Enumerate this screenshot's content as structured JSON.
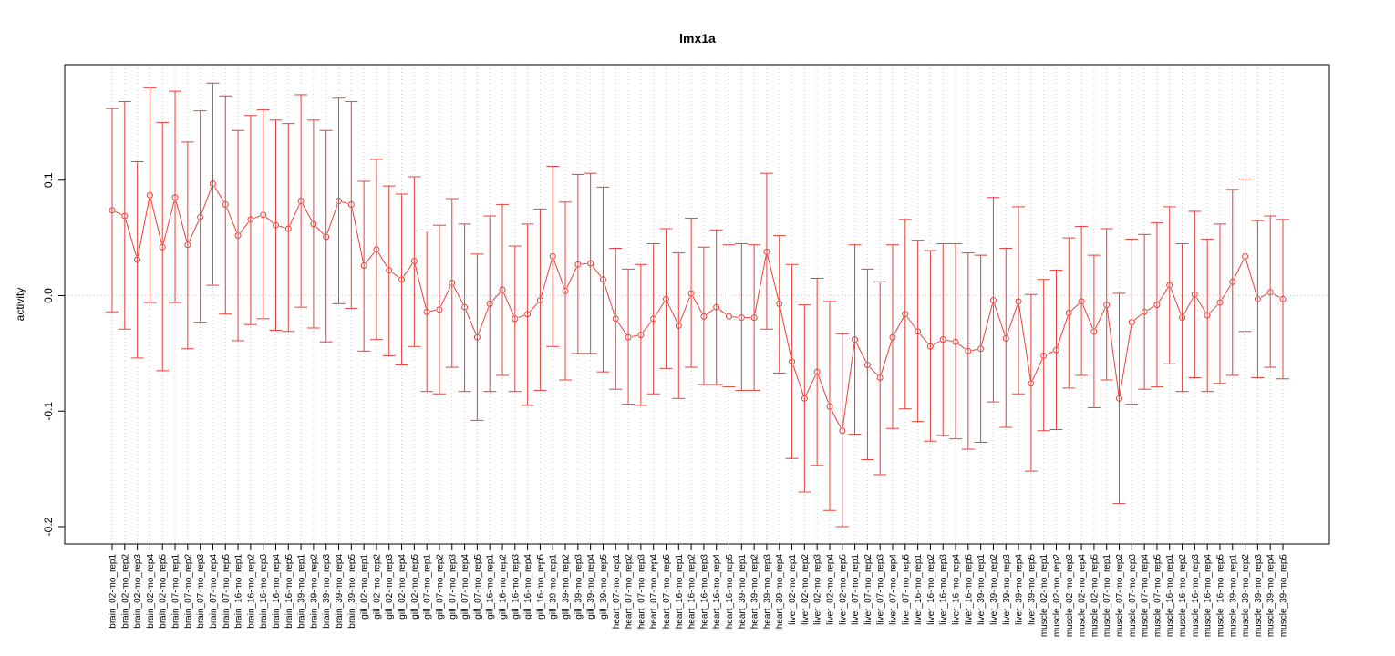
{
  "chart_data": {
    "type": "line",
    "title": "lmx1a",
    "xlabel": "",
    "ylabel": "activity",
    "ylim": [
      -0.215,
      0.2
    ],
    "yticks": [
      -0.2,
      -0.1,
      0.0,
      0.1
    ],
    "ytick_labels": [
      "-0.2",
      "-0.1",
      "0.0",
      "0.1"
    ],
    "grid": true,
    "color": "#e8413a",
    "grid_color": "#cccccc",
    "categories": [
      "brain_02-mo_rep1",
      "brain_02-mo_rep2",
      "brain_02-mo_rep3",
      "brain_02-mo_rep4",
      "brain_02-mo_rep5",
      "brain_07-mo_rep1",
      "brain_07-mo_rep2",
      "brain_07-mo_rep3",
      "brain_07-mo_rep4",
      "brain_07-mo_rep5",
      "brain_16-mo_rep1",
      "brain_16-mo_rep2",
      "brain_16-mo_rep3",
      "brain_16-mo_rep4",
      "brain_16-mo_rep5",
      "brain_39-mo_rep1",
      "brain_39-mo_rep2",
      "brain_39-mo_rep3",
      "brain_39-mo_rep4",
      "brain_39-mo_rep5",
      "gill_02-mo_rep1",
      "gill_02-mo_rep2",
      "gill_02-mo_rep3",
      "gill_02-mo_rep4",
      "gill_02-mo_rep5",
      "gill_07-mo_rep1",
      "gill_07-mo_rep2",
      "gill_07-mo_rep3",
      "gill_07-mo_rep4",
      "gill_07-mo_rep5",
      "gill_16-mo_rep1",
      "gill_16-mo_rep2",
      "gill_16-mo_rep3",
      "gill_16-mo_rep4",
      "gill_16-mo_rep5",
      "gill_39-mo_rep1",
      "gill_39-mo_rep2",
      "gill_39-mo_rep3",
      "gill_39-mo_rep4",
      "gill_39-mo_rep5",
      "heart_07-mo_rep1",
      "heart_07-mo_rep2",
      "heart_07-mo_rep3",
      "heart_07-mo_rep4",
      "heart_07-mo_rep5",
      "heart_16-mo_rep1",
      "heart_16-mo_rep2",
      "heart_16-mo_rep3",
      "heart_16-mo_rep4",
      "heart_16-mo_rep5",
      "heart_39-mo_rep1",
      "heart_39-mo_rep2",
      "heart_39-mo_rep3",
      "heart_39-mo_rep4",
      "liver_02-mo_rep1",
      "liver_02-mo_rep2",
      "liver_02-mo_rep3",
      "liver_02-mo_rep4",
      "liver_02-mo_rep5",
      "liver_07-mo_rep1",
      "liver_07-mo_rep2",
      "liver_07-mo_rep3",
      "liver_07-mo_rep4",
      "liver_07-mo_rep5",
      "liver_16-mo_rep1",
      "liver_16-mo_rep2",
      "liver_16-mo_rep3",
      "liver_16-mo_rep4",
      "liver_16-mo_rep5",
      "liver_39-mo_rep1",
      "liver_39-mo_rep2",
      "liver_39-mo_rep3",
      "liver_39-mo_rep4",
      "liver_39-mo_rep5",
      "muscle_02-mo_rep1",
      "muscle_02-mo_rep2",
      "muscle_02-mo_rep3",
      "muscle_02-mo_rep4",
      "muscle_02-mo_rep5",
      "muscle_07-mo_rep1",
      "muscle_07-mo_rep2",
      "muscle_07-mo_rep3",
      "muscle_07-mo_rep4",
      "muscle_07-mo_rep5",
      "muscle_16-mo_rep1",
      "muscle_16-mo_rep2",
      "muscle_16-mo_rep3",
      "muscle_16-mo_rep4",
      "muscle_16-mo_rep5",
      "muscle_39-mo_rep1",
      "muscle_39-mo_rep2",
      "muscle_39-mo_rep3",
      "muscle_39-mo_rep4",
      "muscle_39-mo_rep5"
    ],
    "values": [
      0.074,
      0.069,
      0.031,
      0.087,
      0.042,
      0.085,
      0.044,
      0.068,
      0.097,
      0.079,
      0.052,
      0.066,
      0.07,
      0.061,
      0.058,
      0.082,
      0.062,
      0.051,
      0.082,
      0.079,
      0.026,
      0.04,
      0.022,
      0.014,
      0.03,
      -0.014,
      -0.012,
      0.011,
      -0.01,
      -0.036,
      -0.007,
      0.005,
      -0.02,
      -0.016,
      -0.004,
      0.034,
      0.004,
      0.027,
      0.028,
      0.014,
      -0.02,
      -0.036,
      -0.034,
      -0.02,
      -0.003,
      -0.026,
      0.002,
      -0.018,
      -0.01,
      -0.018,
      -0.019,
      -0.019,
      0.038,
      -0.007,
      -0.057,
      -0.089,
      -0.066,
      -0.096,
      -0.117,
      -0.038,
      -0.06,
      -0.071,
      -0.036,
      -0.016,
      -0.031,
      -0.044,
      -0.038,
      -0.04,
      -0.048,
      -0.046,
      -0.004,
      -0.037,
      -0.005,
      -0.076,
      -0.052,
      -0.047,
      -0.015,
      -0.005,
      -0.031,
      -0.008,
      -0.089,
      -0.023,
      -0.014,
      -0.008,
      0.009,
      -0.019,
      0.001,
      -0.017,
      -0.006,
      0.012,
      0.034,
      -0.003,
      0.003,
      -0.003
    ],
    "upper": [
      0.162,
      0.168,
      0.116,
      0.18,
      0.15,
      0.177,
      0.133,
      0.16,
      0.184,
      0.173,
      0.143,
      0.156,
      0.161,
      0.152,
      0.149,
      0.174,
      0.152,
      0.143,
      0.171,
      0.168,
      0.099,
      0.118,
      0.095,
      0.088,
      0.103,
      0.056,
      0.061,
      0.084,
      0.062,
      0.036,
      0.069,
      0.079,
      0.043,
      0.062,
      0.075,
      0.112,
      0.081,
      0.105,
      0.106,
      0.094,
      0.041,
      0.023,
      0.027,
      0.045,
      0.058,
      0.037,
      0.067,
      0.042,
      0.057,
      0.044,
      0.045,
      0.044,
      0.106,
      0.052,
      0.027,
      -0.008,
      0.015,
      -0.005,
      -0.033,
      0.044,
      0.023,
      0.012,
      0.044,
      0.066,
      0.048,
      0.039,
      0.045,
      0.045,
      0.037,
      0.035,
      0.085,
      0.041,
      0.077,
      0.001,
      0.014,
      0.022,
      0.05,
      0.06,
      0.035,
      0.058,
      0.002,
      0.049,
      0.053,
      0.063,
      0.077,
      0.045,
      0.073,
      0.049,
      0.062,
      0.092,
      0.101,
      0.065,
      0.069,
      0.066
    ],
    "lower": [
      -0.014,
      -0.029,
      -0.054,
      -0.006,
      -0.065,
      -0.006,
      -0.046,
      -0.023,
      0.009,
      -0.016,
      -0.039,
      -0.025,
      -0.02,
      -0.03,
      -0.031,
      -0.01,
      -0.028,
      -0.04,
      -0.007,
      -0.011,
      -0.048,
      -0.038,
      -0.052,
      -0.06,
      -0.044,
      -0.083,
      -0.085,
      -0.062,
      -0.083,
      -0.108,
      -0.083,
      -0.069,
      -0.083,
      -0.095,
      -0.082,
      -0.044,
      -0.073,
      -0.05,
      -0.05,
      -0.066,
      -0.081,
      -0.094,
      -0.095,
      -0.085,
      -0.063,
      -0.089,
      -0.062,
      -0.077,
      -0.077,
      -0.079,
      -0.082,
      -0.082,
      -0.029,
      -0.067,
      -0.141,
      -0.17,
      -0.147,
      -0.186,
      -0.2,
      -0.12,
      -0.142,
      -0.155,
      -0.115,
      -0.098,
      -0.109,
      -0.126,
      -0.121,
      -0.124,
      -0.133,
      -0.127,
      -0.092,
      -0.114,
      -0.085,
      -0.152,
      -0.117,
      -0.116,
      -0.08,
      -0.069,
      -0.097,
      -0.073,
      -0.18,
      -0.094,
      -0.081,
      -0.079,
      -0.059,
      -0.083,
      -0.071,
      -0.083,
      -0.076,
      -0.069,
      -0.031,
      -0.071,
      -0.062,
      -0.072
    ]
  }
}
